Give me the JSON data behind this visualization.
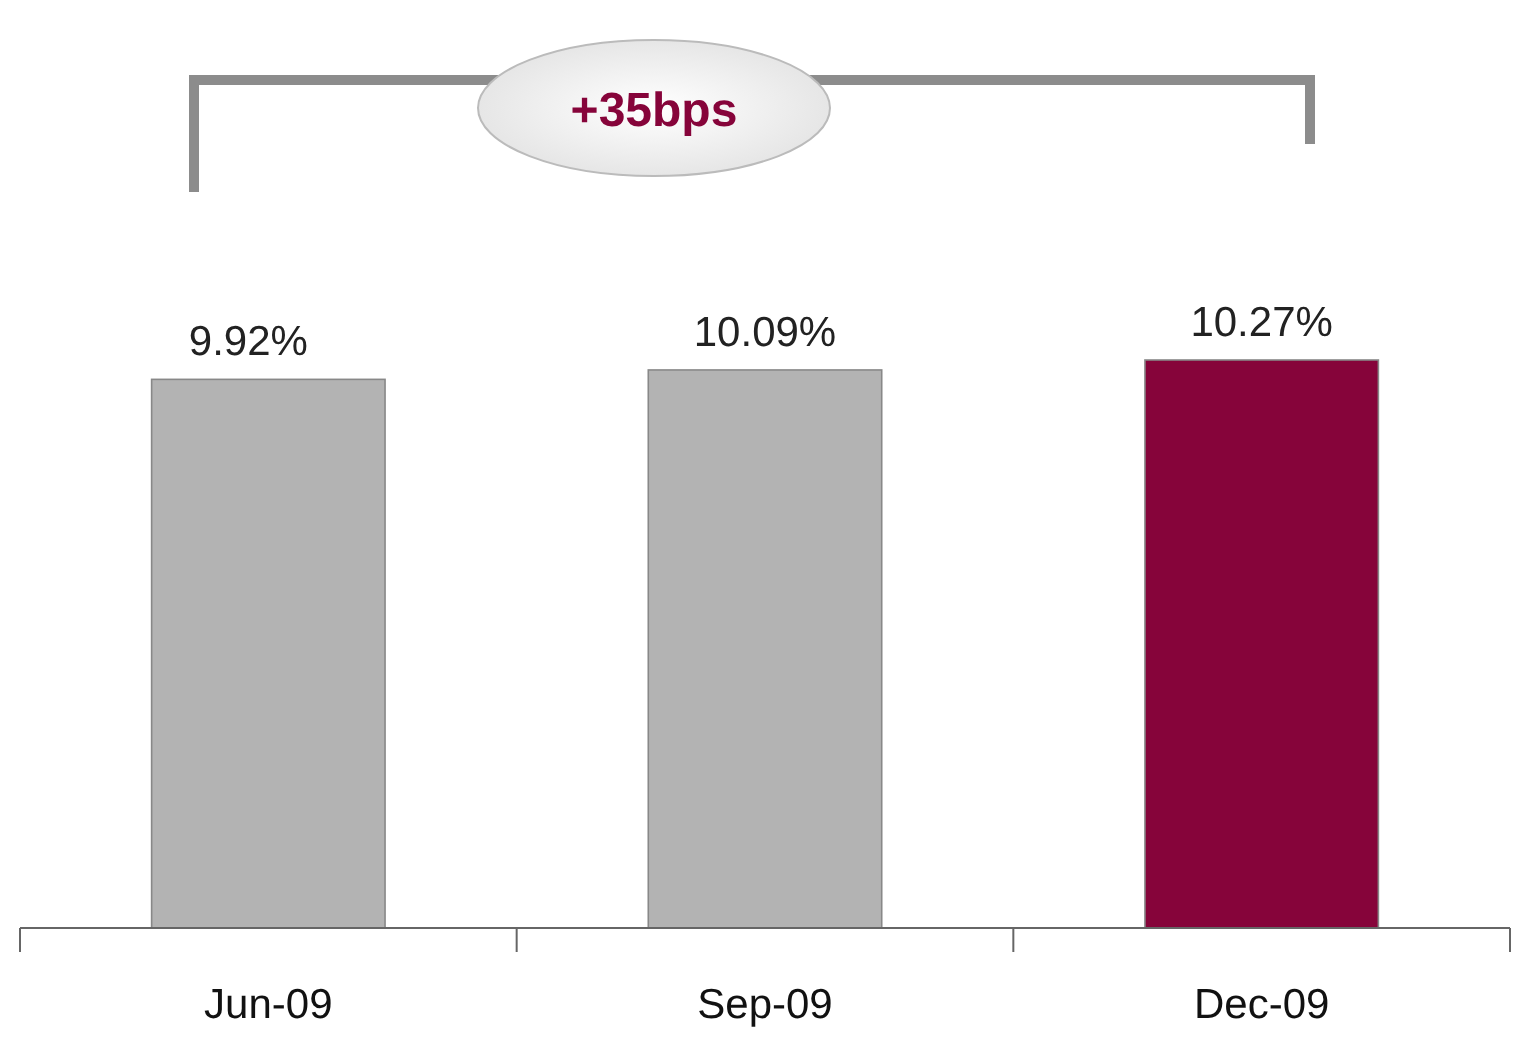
{
  "chart_data": {
    "type": "bar",
    "categories": [
      "Jun-09",
      "Sep-09",
      "Dec-09"
    ],
    "values": [
      9.92,
      10.09,
      10.27
    ],
    "value_labels": [
      "9.92%",
      "10.09%",
      "10.27%"
    ],
    "colors": [
      "#b3b3b3",
      "#b3b3b3",
      "#86043a"
    ],
    "tick_labels": "x",
    "annotations": [
      "+35bps"
    ]
  }
}
